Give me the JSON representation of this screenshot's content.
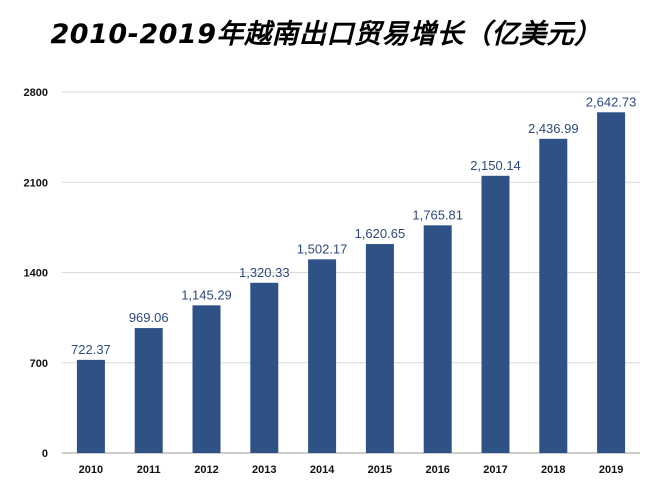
{
  "chart_data": {
    "type": "bar",
    "title": "2010-2019年越南出口贸易增长（亿美元）",
    "xlabel": "",
    "ylabel": "",
    "categories": [
      "2010",
      "2011",
      "2012",
      "2013",
      "2014",
      "2015",
      "2016",
      "2017",
      "2018",
      "2019"
    ],
    "values": [
      722.37,
      969.06,
      1145.29,
      1320.33,
      1502.17,
      1620.65,
      1765.81,
      2150.14,
      2436.99,
      2642.73
    ],
    "data_labels": [
      "722.37",
      "969.06",
      "1,145.29",
      "1,320.33",
      "1,502.17",
      "1,620.65",
      "1,765.81",
      "2,150.14",
      "2,436.99",
      "2,642.73"
    ],
    "yticks": [
      0,
      700,
      1400,
      2100,
      2800
    ],
    "ylim": [
      0,
      2800
    ],
    "grid": true,
    "bar_color": "#2e5286"
  }
}
